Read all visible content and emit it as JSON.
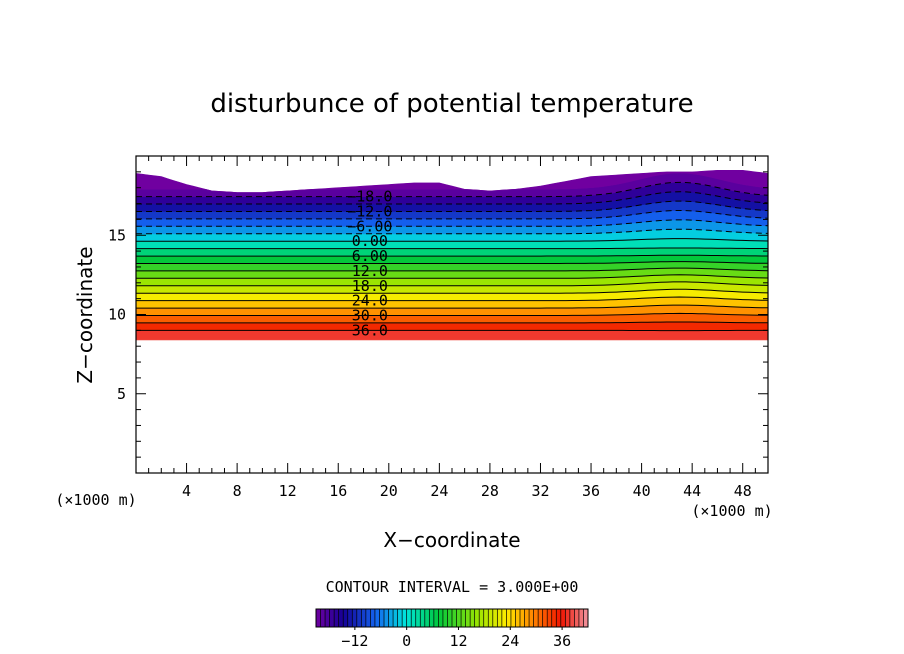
{
  "chart_data": {
    "type": "contour",
    "title": "disturbunce of potential temperature",
    "xlabel": "X−coordinate",
    "ylabel": "Z−coordinate",
    "x_unit": "(×1000 m)",
    "z_unit": "(×1000 m)",
    "xlim": [
      0,
      50
    ],
    "ylim": [
      0,
      20
    ],
    "x_ticks": [
      4,
      8,
      12,
      16,
      20,
      24,
      28,
      32,
      36,
      40,
      44,
      48
    ],
    "y_ticks": [
      5,
      10,
      15
    ],
    "contour_interval_text": "CONTOUR INTERVAL = 3.000E+00",
    "contour_interval": 3.0,
    "contour_labels": [
      "−18.0",
      "−12.0",
      "−6.00",
      "0.00",
      "6.00",
      "12.0",
      "18.0",
      "24.0",
      "30.0",
      "36.0"
    ],
    "contour_label_values": [
      -18,
      -12,
      -6,
      0,
      6,
      12,
      18,
      24,
      30,
      36
    ],
    "colorbar": {
      "range": [
        -21,
        42
      ],
      "ticks": [
        -12,
        0,
        12,
        24,
        36
      ],
      "tick_labels": [
        "−12",
        "0",
        "12",
        "24",
        "36"
      ]
    },
    "data_region": {
      "bottom_z_km": 8.4,
      "top_z_km": [
        18.9,
        18.7,
        18.2,
        17.8,
        17.7,
        17.7,
        17.8,
        17.9,
        18.0,
        18.1,
        18.2,
        18.3,
        18.3,
        17.9,
        17.8,
        17.9,
        18.1,
        18.4,
        18.7,
        18.8,
        18.9,
        19.0,
        19.0,
        19.1,
        19.1,
        18.9
      ],
      "top_x_km": [
        0,
        2,
        4,
        6,
        8,
        10,
        12,
        14,
        16,
        18,
        20,
        22,
        24,
        26,
        28,
        30,
        32,
        34,
        36,
        38,
        40,
        42,
        44,
        46,
        48,
        50
      ]
    }
  }
}
